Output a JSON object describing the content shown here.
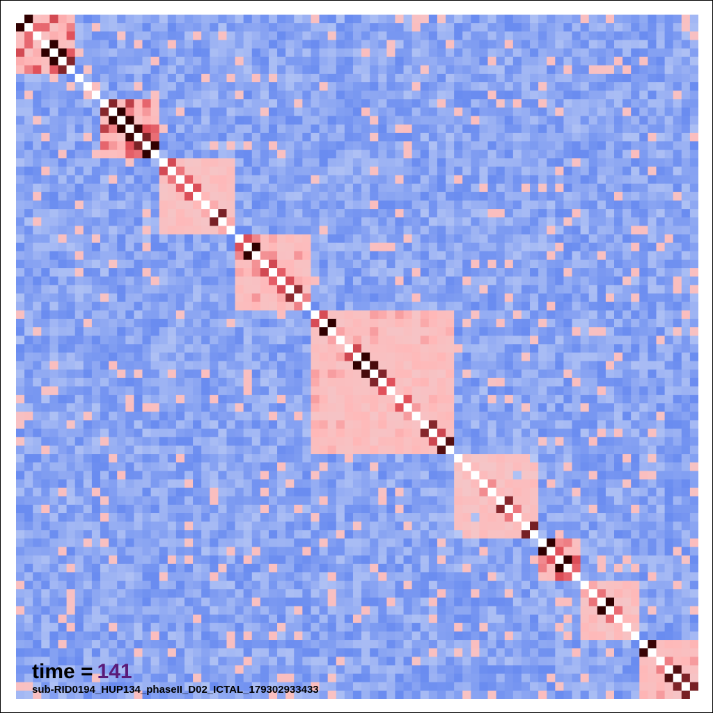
{
  "chart_data": {
    "type": "heatmap",
    "rows": 81,
    "cols": 81,
    "value_range": [
      -1,
      1
    ],
    "diagonal_value": 1.0,
    "colormap": {
      "low": "#6a8cf0",
      "mid": "#ffffff",
      "high": "#ffb8b8",
      "very_high": "#e0505a",
      "extreme": "#300000"
    },
    "blocks": [
      {
        "start": 0,
        "end": 7,
        "level": 0.55
      },
      {
        "start": 10,
        "end": 17,
        "level": 0.6
      },
      {
        "start": 17,
        "end": 26,
        "level": 0.3
      },
      {
        "start": 26,
        "end": 35,
        "level": 0.45
      },
      {
        "start": 35,
        "end": 52,
        "level": 0.35
      },
      {
        "start": 52,
        "end": 62,
        "level": 0.2
      },
      {
        "start": 62,
        "end": 67,
        "level": 0.55
      },
      {
        "start": 67,
        "end": 74,
        "level": 0.3
      },
      {
        "start": 74,
        "end": 81,
        "level": 0.35
      }
    ],
    "title": "",
    "xlabel": "",
    "ylabel": ""
  },
  "overlay": {
    "time_label": "time =",
    "time_value": "141",
    "file_id": "sub-RID0194_HUP134_phaseII_D02_ICTAL_179302933433"
  }
}
